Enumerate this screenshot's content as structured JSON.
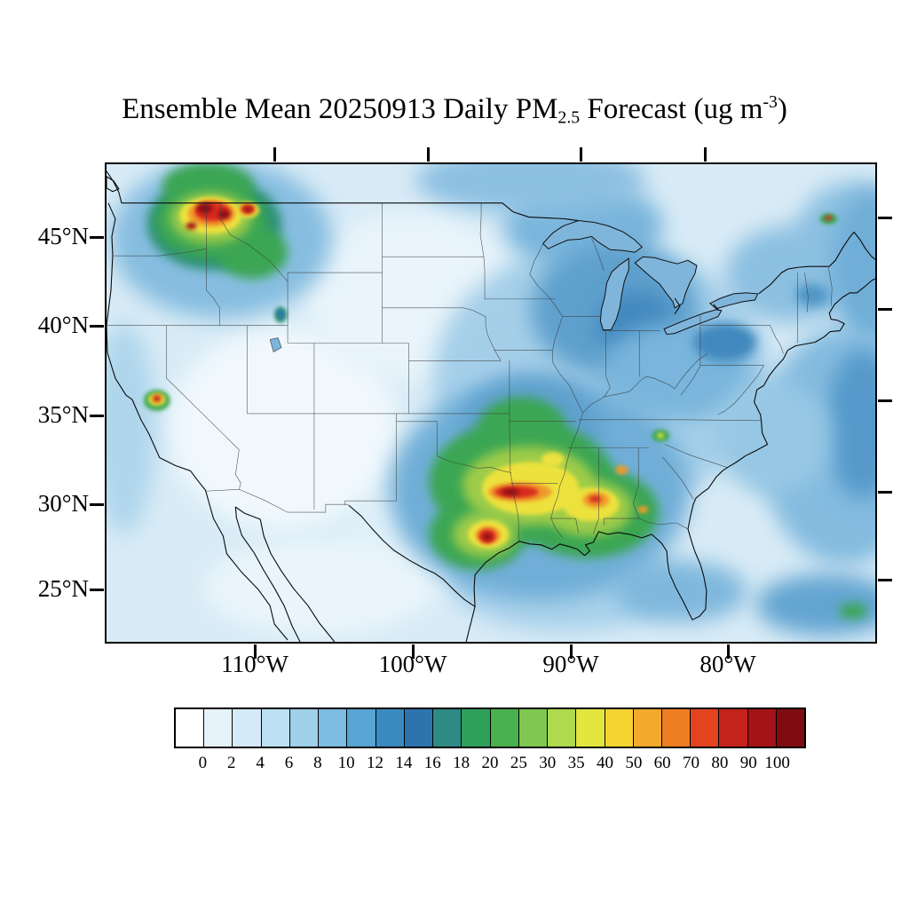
{
  "title": {
    "prefix": "Ensemble Mean 20250913 Daily PM",
    "subscript": "2.5",
    "middle": " Forecast (ug m",
    "superscript": "-3",
    "suffix": ")"
  },
  "colorbar": {
    "tick_labels": [
      "0",
      "2",
      "4",
      "6",
      "8",
      "10",
      "12",
      "14",
      "16",
      "18",
      "20",
      "25",
      "30",
      "35",
      "40",
      "50",
      "60",
      "70",
      "80",
      "90",
      "100"
    ],
    "colors": [
      "#FFFFFF",
      "#E7F3FB",
      "#D4EAF6",
      "#BCDFF1",
      "#9ED0EA",
      "#7CBCE0",
      "#58A4D3",
      "#3A8AC2",
      "#2D74AE",
      "#2E8B84",
      "#2FA05A",
      "#49B14E",
      "#7FC84F",
      "#AFD94E",
      "#E2E63F",
      "#F5D432",
      "#F2A92C",
      "#EE7E22",
      "#E1441F",
      "#C3231B",
      "#A31317",
      "#7F0C10"
    ]
  },
  "chart_data": {
    "type": "heatmap",
    "title": "Ensemble Mean 20250913 Daily PM2.5 Forecast (ug m-3)",
    "date": "20250913",
    "variable": "Daily PM2.5",
    "units": "ug m-3",
    "region": "Contiguous United States with portions of Canada and Mexico",
    "x_axis": {
      "tick_labels": [
        "110°W",
        "100°W",
        "90°W",
        "80°W"
      ]
    },
    "y_axis": {
      "tick_labels": [
        "45°N",
        "40°N",
        "35°N",
        "30°N",
        "25°N"
      ]
    },
    "color_levels": [
      0,
      2,
      4,
      6,
      8,
      10,
      12,
      14,
      16,
      18,
      20,
      25,
      30,
      35,
      40,
      50,
      60,
      70,
      80,
      90,
      100
    ],
    "legend_position": "bottom",
    "features": [
      {
        "area": "Pacific Northwest (eastern Washington, Idaho panhandle, western Montana)",
        "values": "20 to >100",
        "description": "Largest hotspot; broad green/yellow region with several dark-red cores exceeding 100"
      },
      {
        "area": "Northern California (Sierra foothills)",
        "values": "30-100",
        "description": "Small isolated hotspot with red core"
      },
      {
        "area": "South-central US (east Texas, Oklahoma, Arkansas, Louisiana, Mississippi, Alabama)",
        "values": "16-100",
        "description": "Broad elevated region; red cores 60-100 over southern Arkansas and southeast Texas"
      },
      {
        "area": "Northern Utah / southeast Idaho",
        "values": "10-16",
        "description": "Tiny blue-green spot"
      },
      {
        "area": "Upper Midwest, Great Lakes and Ohio Valley",
        "values": "8-14",
        "description": "Moderate blue shading"
      },
      {
        "area": "Great Basin, Four Corners and northern Plains",
        "values": "0-4",
        "description": "Cleanest air, near-white shading"
      },
      {
        "area": "Western Atlantic offshore band",
        "values": "6-12",
        "description": "Darker blue band along and off the east coast"
      },
      {
        "area": "Southern Appalachians / north Georgia",
        "values": "16-30",
        "description": "Small green-yellow spots"
      }
    ]
  }
}
